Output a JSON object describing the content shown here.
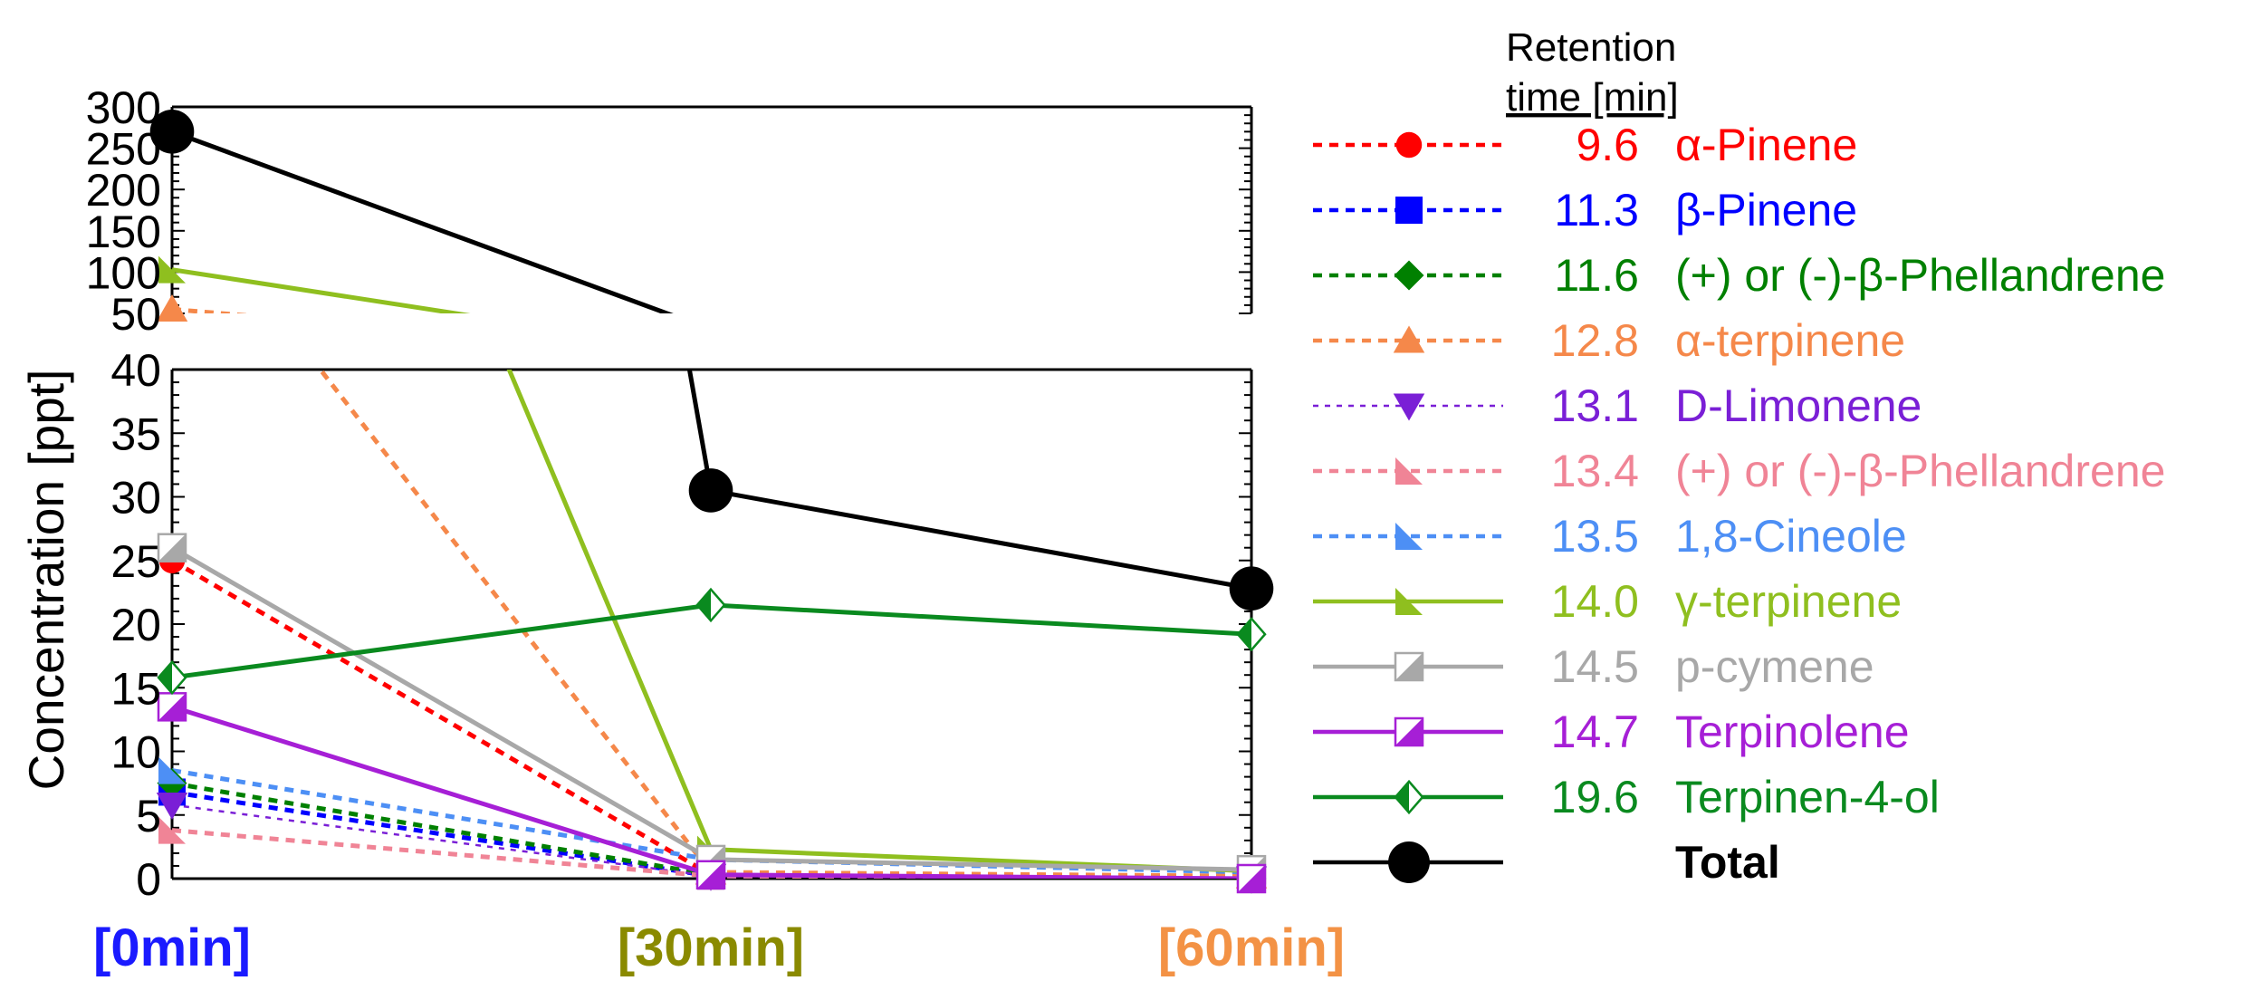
{
  "chart_data": {
    "type": "line",
    "ylabel": "Concentration [ppt]",
    "categories": [
      "[0min]",
      "[30min]",
      "[60min]"
    ],
    "category_colors": [
      "#1a1aff",
      "#8a8a00",
      "#f39245"
    ],
    "x_values": [
      0,
      30,
      60
    ],
    "y_axis_upper": {
      "ylim": [
        50,
        300
      ],
      "ticks": [
        "50",
        "100",
        "150",
        "200",
        "250",
        "300"
      ]
    },
    "y_axis_lower": {
      "ylim": [
        0,
        40
      ],
      "ticks": [
        "0",
        "5",
        "10",
        "15",
        "20",
        "25",
        "30",
        "35",
        "40"
      ]
    },
    "legend_header": [
      "Retention",
      "time [min]"
    ],
    "series": [
      {
        "name": "α-Pinene",
        "rt": "9.6",
        "color": "#ff0000",
        "dash": true,
        "marker": "circle",
        "values": [
          25.0,
          0.3,
          0.1
        ]
      },
      {
        "name": "β-Pinene",
        "rt": "11.3",
        "color": "#0000ff",
        "dash": true,
        "marker": "square",
        "values": [
          6.8,
          0.2,
          0.0
        ]
      },
      {
        "name": "(+) or (-)-β-Phellandrene",
        "rt": "11.6",
        "color": "#008000",
        "dash": true,
        "marker": "diamond",
        "values": [
          7.5,
          0.3,
          0.0
        ]
      },
      {
        "name": "α-terpinene",
        "rt": "12.8",
        "color": "#f5884a",
        "dash": true,
        "marker": "triangle-up",
        "values": [
          55.0,
          0.5,
          0.2
        ]
      },
      {
        "name": "D-Limonene",
        "rt": "13.1",
        "color": "#7a1fd6",
        "dash": true,
        "thin": true,
        "marker": "triangle-down",
        "values": [
          5.8,
          0.2,
          0.0
        ]
      },
      {
        "name": "(+) or (-)-β-Phellandrene",
        "rt": "13.4",
        "color": "#f08496",
        "dash": true,
        "marker": "half-triangle",
        "values": [
          3.8,
          0.2,
          0.0
        ]
      },
      {
        "name": "1,8-Cineole",
        "rt": "13.5",
        "color": "#4d8ff5",
        "dash": true,
        "marker": "half-triangle",
        "values": [
          8.5,
          1.5,
          0.5
        ]
      },
      {
        "name": "γ-terpinene",
        "rt": "14.0",
        "color": "#8fbf1f",
        "dash": false,
        "marker": "half-triangle",
        "values": [
          103.0,
          2.3,
          0.6
        ]
      },
      {
        "name": "p-cymene",
        "rt": "14.5",
        "color": "#a8a8a8",
        "dash": false,
        "marker": "half-square",
        "values": [
          26.0,
          1.5,
          0.7
        ]
      },
      {
        "name": "Terpinolene",
        "rt": "14.7",
        "color": "#a61fd6",
        "dash": false,
        "marker": "half-square",
        "values": [
          13.5,
          0.3,
          0.0
        ]
      },
      {
        "name": "Terpinen-4-ol",
        "rt": "19.6",
        "color": "#0a8a1f",
        "dash": false,
        "marker": "half-diamond",
        "values": [
          15.8,
          21.5,
          19.2
        ]
      },
      {
        "name": "Total",
        "rt": "",
        "color": "#000000",
        "dash": false,
        "bold": true,
        "marker": "big-circle",
        "values": [
          270.0,
          30.5,
          22.8
        ]
      }
    ]
  }
}
